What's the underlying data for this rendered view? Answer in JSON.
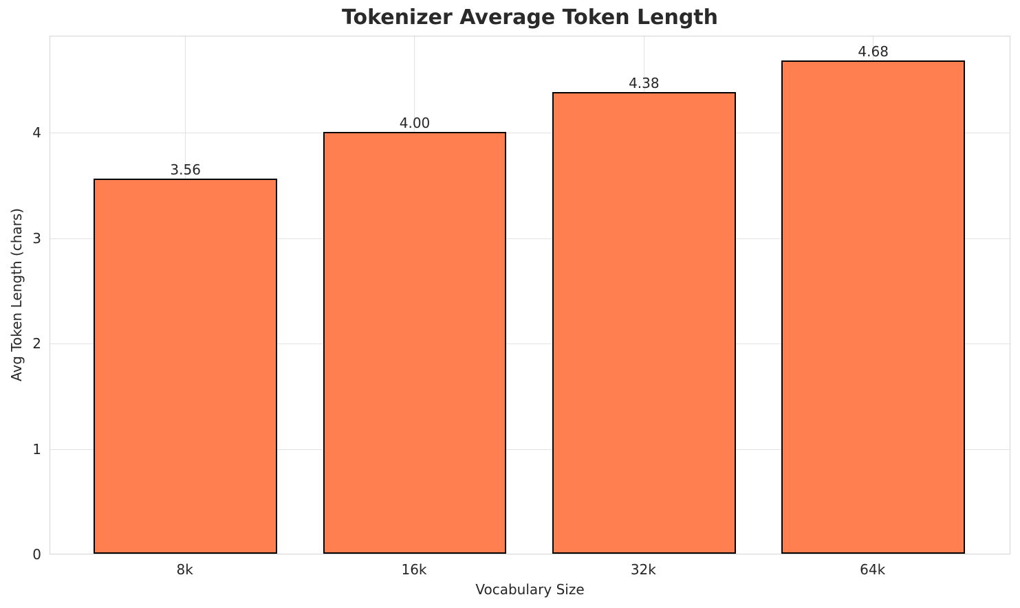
{
  "chart_data": {
    "type": "bar",
    "title": "Tokenizer Average Token Length",
    "xlabel": "Vocabulary Size",
    "ylabel": "Avg Token Length (chars)",
    "categories": [
      "8k",
      "16k",
      "32k",
      "64k"
    ],
    "values": [
      3.56,
      4.0,
      4.38,
      4.68
    ],
    "bar_value_labels": [
      "3.56",
      "4.00",
      "4.38",
      "4.68"
    ],
    "yticks": [
      0,
      1,
      2,
      3,
      4
    ],
    "ylim": [
      0,
      4.92
    ],
    "grid": true,
    "legend": "none",
    "colors": {
      "bar_fill": "#FF7F50",
      "bar_edge": "#000000",
      "grid": "#e2e2e2",
      "spine": "#d4d4d4",
      "text": "#262626",
      "background": "#ffffff"
    }
  }
}
